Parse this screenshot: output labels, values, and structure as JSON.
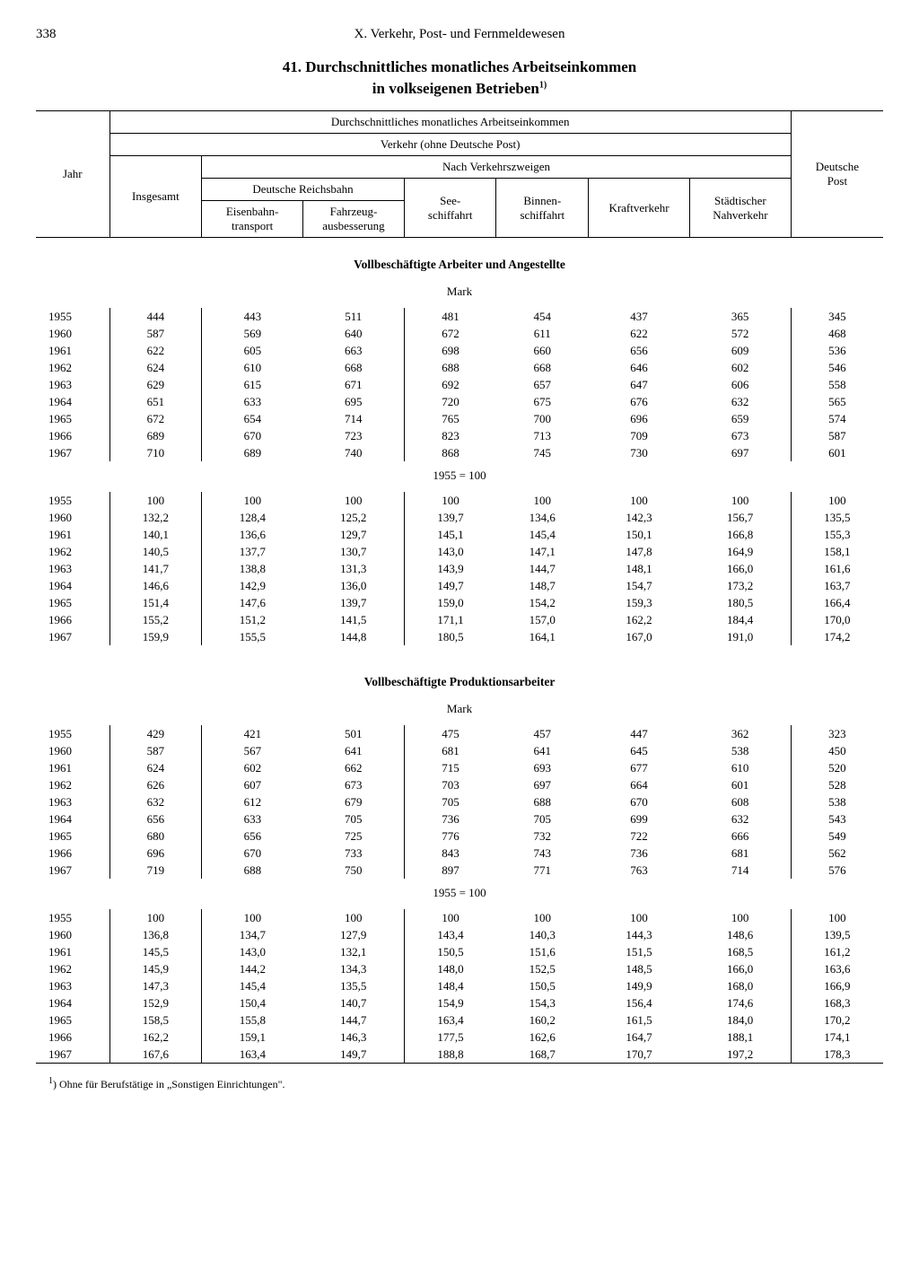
{
  "page_number": "338",
  "chapter_header": "X. Verkehr, Post- und Fernmeldewesen",
  "title": "41. Durchschnittliches monatliches Arbeitseinkommen",
  "subtitle_prefix": "in volkseigenen Betrieben",
  "subtitle_sup": "1)",
  "header": {
    "top": "Durchschnittliches monatliches Arbeitseinkommen",
    "verkehr": "Verkehr (ohne Deutsche Post)",
    "nach": "Nach Verkehrszweigen",
    "jahr": "Jahr",
    "insgesamt": "Insgesamt",
    "reichsbahn": "Deutsche Reichsbahn",
    "eisenbahn1": "Eisenbahn-",
    "eisenbahn2": "transport",
    "fahrzeug1": "Fahrzeug-",
    "fahrzeug2": "ausbesserung",
    "see1": "See-",
    "see2": "schiffahrt",
    "binnen1": "Binnen-",
    "binnen2": "schiffahrt",
    "kraft": "Kraftverkehr",
    "nah1": "Städtischer",
    "nah2": "Nahverkehr",
    "post1": "Deutsche",
    "post2": "Post"
  },
  "section1": "Vollbeschäftigte Arbeiter und Angestellte",
  "section2": "Vollbeschäftigte Produktionsarbeiter",
  "unit_mark": "Mark",
  "unit_index": "1955 = 100",
  "footnote_marker": "1",
  "footnote_text": ") Ohne für Berufstätige in „Sonstigen Einrichtungen\".",
  "years": [
    "1955",
    "1960",
    "1961",
    "1962",
    "1963",
    "1964",
    "1965",
    "1966",
    "1967"
  ],
  "s1_mark": [
    [
      "444",
      "443",
      "511",
      "481",
      "454",
      "437",
      "365",
      "345"
    ],
    [
      "587",
      "569",
      "640",
      "672",
      "611",
      "622",
      "572",
      "468"
    ],
    [
      "622",
      "605",
      "663",
      "698",
      "660",
      "656",
      "609",
      "536"
    ],
    [
      "624",
      "610",
      "668",
      "688",
      "668",
      "646",
      "602",
      "546"
    ],
    [
      "629",
      "615",
      "671",
      "692",
      "657",
      "647",
      "606",
      "558"
    ],
    [
      "651",
      "633",
      "695",
      "720",
      "675",
      "676",
      "632",
      "565"
    ],
    [
      "672",
      "654",
      "714",
      "765",
      "700",
      "696",
      "659",
      "574"
    ],
    [
      "689",
      "670",
      "723",
      "823",
      "713",
      "709",
      "673",
      "587"
    ],
    [
      "710",
      "689",
      "740",
      "868",
      "745",
      "730",
      "697",
      "601"
    ]
  ],
  "s1_idx": [
    [
      "100",
      "100",
      "100",
      "100",
      "100",
      "100",
      "100",
      "100"
    ],
    [
      "132,2",
      "128,4",
      "125,2",
      "139,7",
      "134,6",
      "142,3",
      "156,7",
      "135,5"
    ],
    [
      "140,1",
      "136,6",
      "129,7",
      "145,1",
      "145,4",
      "150,1",
      "166,8",
      "155,3"
    ],
    [
      "140,5",
      "137,7",
      "130,7",
      "143,0",
      "147,1",
      "147,8",
      "164,9",
      "158,1"
    ],
    [
      "141,7",
      "138,8",
      "131,3",
      "143,9",
      "144,7",
      "148,1",
      "166,0",
      "161,6"
    ],
    [
      "146,6",
      "142,9",
      "136,0",
      "149,7",
      "148,7",
      "154,7",
      "173,2",
      "163,7"
    ],
    [
      "151,4",
      "147,6",
      "139,7",
      "159,0",
      "154,2",
      "159,3",
      "180,5",
      "166,4"
    ],
    [
      "155,2",
      "151,2",
      "141,5",
      "171,1",
      "157,0",
      "162,2",
      "184,4",
      "170,0"
    ],
    [
      "159,9",
      "155,5",
      "144,8",
      "180,5",
      "164,1",
      "167,0",
      "191,0",
      "174,2"
    ]
  ],
  "s2_mark": [
    [
      "429",
      "421",
      "501",
      "475",
      "457",
      "447",
      "362",
      "323"
    ],
    [
      "587",
      "567",
      "641",
      "681",
      "641",
      "645",
      "538",
      "450"
    ],
    [
      "624",
      "602",
      "662",
      "715",
      "693",
      "677",
      "610",
      "520"
    ],
    [
      "626",
      "607",
      "673",
      "703",
      "697",
      "664",
      "601",
      "528"
    ],
    [
      "632",
      "612",
      "679",
      "705",
      "688",
      "670",
      "608",
      "538"
    ],
    [
      "656",
      "633",
      "705",
      "736",
      "705",
      "699",
      "632",
      "543"
    ],
    [
      "680",
      "656",
      "725",
      "776",
      "732",
      "722",
      "666",
      "549"
    ],
    [
      "696",
      "670",
      "733",
      "843",
      "743",
      "736",
      "681",
      "562"
    ],
    [
      "719",
      "688",
      "750",
      "897",
      "771",
      "763",
      "714",
      "576"
    ]
  ],
  "s2_idx": [
    [
      "100",
      "100",
      "100",
      "100",
      "100",
      "100",
      "100",
      "100"
    ],
    [
      "136,8",
      "134,7",
      "127,9",
      "143,4",
      "140,3",
      "144,3",
      "148,6",
      "139,5"
    ],
    [
      "145,5",
      "143,0",
      "132,1",
      "150,5",
      "151,6",
      "151,5",
      "168,5",
      "161,2"
    ],
    [
      "145,9",
      "144,2",
      "134,3",
      "148,0",
      "152,5",
      "148,5",
      "166,0",
      "163,6"
    ],
    [
      "147,3",
      "145,4",
      "135,5",
      "148,4",
      "150,5",
      "149,9",
      "168,0",
      "166,9"
    ],
    [
      "152,9",
      "150,4",
      "140,7",
      "154,9",
      "154,3",
      "156,4",
      "174,6",
      "168,3"
    ],
    [
      "158,5",
      "155,8",
      "144,7",
      "163,4",
      "160,2",
      "161,5",
      "184,0",
      "170,2"
    ],
    [
      "162,2",
      "159,1",
      "146,3",
      "177,5",
      "162,6",
      "164,7",
      "188,1",
      "174,1"
    ],
    [
      "167,6",
      "163,4",
      "149,7",
      "188,8",
      "168,7",
      "170,7",
      "197,2",
      "178,3"
    ]
  ]
}
